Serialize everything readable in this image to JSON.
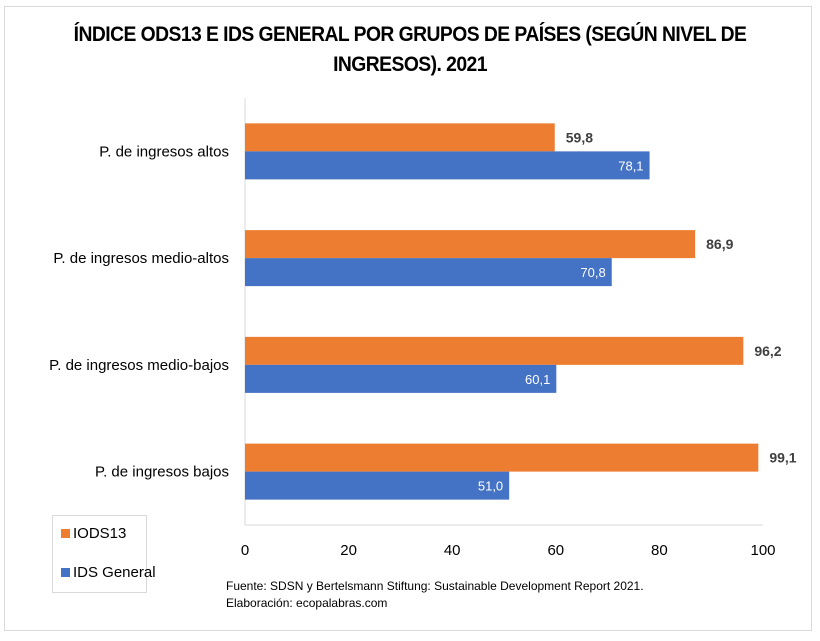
{
  "chart_data": {
    "type": "bar",
    "orientation": "horizontal",
    "title": "ÍNDICE ODS13 E IDS GENERAL POR GRUPOS DE PAÍSES (SEGÚN NIVEL DE INGRESOS). 2021",
    "title_lines": [
      "ÍNDICE ODS13 E IDS GENERAL POR GRUPOS DE PAÍSES (SEGÚN NIVEL DE",
      "INGRESOS). 2021"
    ],
    "categories": [
      "P. de ingresos altos",
      "P. de ingresos medio-altos",
      "P. de ingresos medio-bajos",
      "P. de ingresos bajos"
    ],
    "series": [
      {
        "name": "IODS13",
        "color": "#ED7D31",
        "values": [
          59.8,
          86.9,
          96.2,
          99.1
        ],
        "labels": [
          "59,8",
          "86,9",
          "96,2",
          "99,1"
        ]
      },
      {
        "name": "IDS General",
        "color": "#4472C4",
        "values": [
          78.1,
          70.8,
          60.1,
          51.0
        ],
        "labels": [
          "78,1",
          "70,8",
          "60,1",
          "51,0"
        ]
      }
    ],
    "xlabel": "",
    "ylabel": "",
    "xlim": [
      0,
      100
    ],
    "xticks": [
      0,
      20,
      40,
      60,
      80,
      100
    ],
    "xtick_labels": [
      "0",
      "20",
      "40",
      "60",
      "80",
      "100"
    ],
    "grid": false,
    "legend_position": "bottom-left"
  },
  "legend": {
    "items": [
      {
        "label": "IODS13",
        "color": "#ED7D31"
      },
      {
        "label": "IDS General",
        "color": "#4472C4"
      }
    ]
  },
  "source": {
    "line1": "Fuente: SDSN y Bertelsmann Stiftung: Sustainable Development Report 2021.",
    "line2": "Elaboración: ecopalabras.com"
  }
}
